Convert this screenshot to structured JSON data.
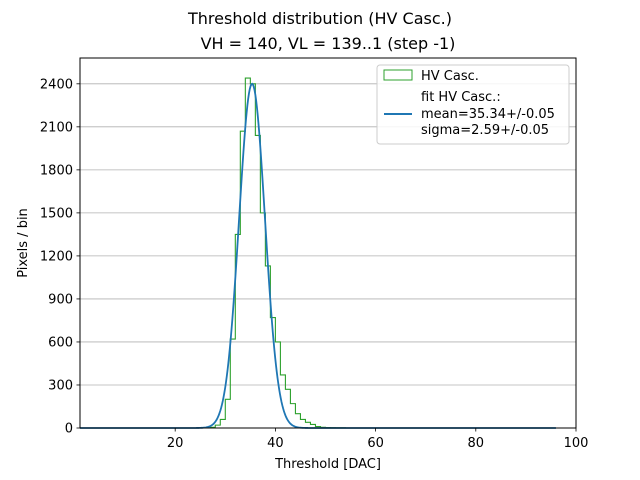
{
  "chart_data": {
    "type": "histogram",
    "title": "Threshold distribution (HV Casc.)",
    "subtitle": "VH = 140, VL = 139..1 (step -1)",
    "xlabel": "Threshold [DAC]",
    "ylabel": "Pixels / bin",
    "xlim": [
      1,
      100
    ],
    "ylim": [
      0,
      2580
    ],
    "xticks": [
      20,
      40,
      60,
      80,
      100
    ],
    "yticks": [
      0,
      300,
      600,
      900,
      1200,
      1500,
      1800,
      2100,
      2400
    ],
    "grid": "horizontal",
    "legend": {
      "placement": "top-right",
      "entries": [
        {
          "label": "HV Casc.",
          "kind": "histogram"
        },
        {
          "label_lines": [
            "fit HV Casc.:",
            "mean=35.34+/-0.05",
            "sigma=2.59+/-0.05"
          ],
          "kind": "line"
        }
      ]
    },
    "series": [
      {
        "name": "HV Casc.",
        "kind": "step-histogram",
        "color": "#2ca02c",
        "bin_width": 1,
        "bins": [
          {
            "x": 27,
            "y": 5
          },
          {
            "x": 28,
            "y": 20
          },
          {
            "x": 29,
            "y": 60
          },
          {
            "x": 30,
            "y": 200
          },
          {
            "x": 31,
            "y": 620
          },
          {
            "x": 32,
            "y": 1350
          },
          {
            "x": 33,
            "y": 2070
          },
          {
            "x": 34,
            "y": 2440
          },
          {
            "x": 35,
            "y": 2400
          },
          {
            "x": 36,
            "y": 2040
          },
          {
            "x": 37,
            "y": 1500
          },
          {
            "x": 38,
            "y": 1130
          },
          {
            "x": 39,
            "y": 770
          },
          {
            "x": 40,
            "y": 600
          },
          {
            "x": 41,
            "y": 370
          },
          {
            "x": 42,
            "y": 270
          },
          {
            "x": 43,
            "y": 170
          },
          {
            "x": 44,
            "y": 100
          },
          {
            "x": 45,
            "y": 60
          },
          {
            "x": 46,
            "y": 40
          },
          {
            "x": 47,
            "y": 25
          },
          {
            "x": 48,
            "y": 10
          },
          {
            "x": 49,
            "y": 5
          },
          {
            "x": 50,
            "y": 3
          },
          {
            "x": 51,
            "y": 2
          },
          {
            "x": 52,
            "y": 1
          },
          {
            "x": 53,
            "y": 1
          },
          {
            "x": 54,
            "y": 0
          }
        ]
      },
      {
        "name": "fit HV Casc.:",
        "kind": "gaussian-fit",
        "color": "#1f77b4",
        "mean": 35.34,
        "sigma": 2.59,
        "amplitude": 2400,
        "x_range": [
          1,
          96
        ]
      }
    ]
  }
}
